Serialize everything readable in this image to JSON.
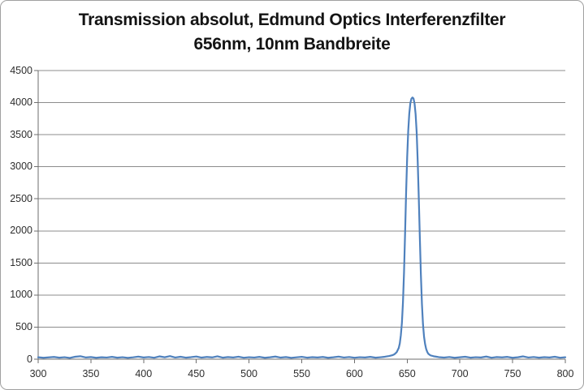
{
  "colors": {
    "line": "#4F81BD",
    "gridline": "#8C8C8C",
    "axis": "#6E6E6E",
    "tick": "#6E6E6E",
    "label_text": "#2e2e2e",
    "title_text": "#141414",
    "frame_border": "#a0a0a0",
    "background": "#FFFFFF"
  },
  "chart_data": {
    "type": "line",
    "title": "Transmission absolut, Edmund Optics Interferenzfilter 656nm, 10nm Bandbreite",
    "title_lines": [
      "Transmission absolut, Edmund Optics Interferenzfilter",
      "656nm, 10nm Bandbreite"
    ],
    "xlabel": "",
    "ylabel": "",
    "xlim": [
      300,
      800
    ],
    "ylim": [
      0,
      4500
    ],
    "x_ticks": [
      300,
      350,
      400,
      450,
      500,
      550,
      600,
      650,
      700,
      750,
      800
    ],
    "y_ticks": [
      0,
      500,
      1000,
      1500,
      2000,
      2500,
      3000,
      3500,
      4000,
      4500
    ],
    "grid": "horizontal-only",
    "legend": "none",
    "series": [
      {
        "name": "Transmission",
        "color": "#4F81BD",
        "points": [
          [
            300,
            30
          ],
          [
            305,
            22
          ],
          [
            310,
            28
          ],
          [
            315,
            35
          ],
          [
            320,
            24
          ],
          [
            325,
            31
          ],
          [
            330,
            20
          ],
          [
            335,
            38
          ],
          [
            340,
            46
          ],
          [
            345,
            27
          ],
          [
            350,
            33
          ],
          [
            355,
            22
          ],
          [
            360,
            30
          ],
          [
            365,
            26
          ],
          [
            370,
            36
          ],
          [
            375,
            24
          ],
          [
            380,
            31
          ],
          [
            385,
            21
          ],
          [
            390,
            29
          ],
          [
            395,
            40
          ],
          [
            400,
            27
          ],
          [
            405,
            34
          ],
          [
            410,
            23
          ],
          [
            415,
            44
          ],
          [
            420,
            30
          ],
          [
            425,
            48
          ],
          [
            430,
            26
          ],
          [
            435,
            38
          ],
          [
            440,
            24
          ],
          [
            445,
            32
          ],
          [
            450,
            42
          ],
          [
            455,
            25
          ],
          [
            460,
            35
          ],
          [
            465,
            28
          ],
          [
            470,
            45
          ],
          [
            475,
            24
          ],
          [
            480,
            33
          ],
          [
            485,
            27
          ],
          [
            490,
            39
          ],
          [
            495,
            23
          ],
          [
            500,
            31
          ],
          [
            505,
            26
          ],
          [
            510,
            36
          ],
          [
            515,
            22
          ],
          [
            520,
            30
          ],
          [
            525,
            41
          ],
          [
            530,
            25
          ],
          [
            535,
            33
          ],
          [
            540,
            21
          ],
          [
            545,
            29
          ],
          [
            550,
            37
          ],
          [
            555,
            24
          ],
          [
            560,
            32
          ],
          [
            565,
            27
          ],
          [
            570,
            35
          ],
          [
            575,
            22
          ],
          [
            580,
            30
          ],
          [
            585,
            40
          ],
          [
            590,
            26
          ],
          [
            595,
            34
          ],
          [
            600,
            23
          ],
          [
            605,
            31
          ],
          [
            610,
            27
          ],
          [
            615,
            36
          ],
          [
            620,
            24
          ],
          [
            625,
            31
          ],
          [
            628,
            36
          ],
          [
            630,
            42
          ],
          [
            633,
            50
          ],
          [
            636,
            62
          ],
          [
            638,
            78
          ],
          [
            640,
            108
          ],
          [
            642,
            175
          ],
          [
            643,
            245
          ],
          [
            644,
            375
          ],
          [
            645,
            565
          ],
          [
            646,
            885
          ],
          [
            647,
            1350
          ],
          [
            648,
            1950
          ],
          [
            649,
            2600
          ],
          [
            650,
            3150
          ],
          [
            651,
            3560
          ],
          [
            652,
            3830
          ],
          [
            653,
            3990
          ],
          [
            654,
            4060
          ],
          [
            655,
            4080
          ],
          [
            656,
            4065
          ],
          [
            657,
            3985
          ],
          [
            658,
            3820
          ],
          [
            659,
            3540
          ],
          [
            660,
            3080
          ],
          [
            661,
            2520
          ],
          [
            662,
            1900
          ],
          [
            663,
            1320
          ],
          [
            664,
            860
          ],
          [
            665,
            545
          ],
          [
            666,
            350
          ],
          [
            667,
            235
          ],
          [
            668,
            160
          ],
          [
            669,
            115
          ],
          [
            670,
            85
          ],
          [
            672,
            60
          ],
          [
            675,
            46
          ],
          [
            678,
            38
          ],
          [
            680,
            32
          ],
          [
            685,
            25
          ],
          [
            690,
            34
          ],
          [
            695,
            22
          ],
          [
            700,
            30
          ],
          [
            705,
            38
          ],
          [
            710,
            24
          ],
          [
            715,
            31
          ],
          [
            720,
            27
          ],
          [
            725,
            41
          ],
          [
            730,
            23
          ],
          [
            735,
            33
          ],
          [
            740,
            28
          ],
          [
            745,
            36
          ],
          [
            750,
            22
          ],
          [
            755,
            30
          ],
          [
            760,
            44
          ],
          [
            765,
            26
          ],
          [
            770,
            34
          ],
          [
            775,
            24
          ],
          [
            780,
            32
          ],
          [
            785,
            27
          ],
          [
            790,
            38
          ],
          [
            795,
            23
          ],
          [
            800,
            30
          ]
        ]
      }
    ]
  }
}
